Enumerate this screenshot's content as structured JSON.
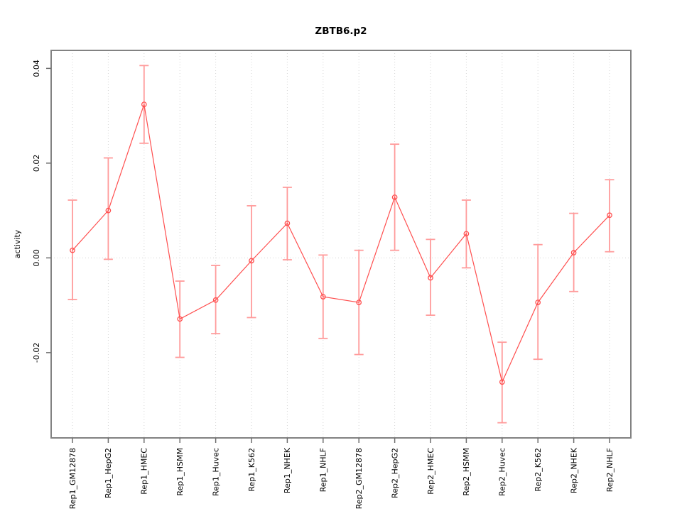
{
  "chart_data": {
    "type": "line",
    "title": "ZBTB6.p2",
    "ylabel": "activity",
    "xlabel": "",
    "legend": "none",
    "grid": "vertical dotted gridline at each category plus dotted horizontal line at y=0",
    "categories": [
      "Rep1_GM12878",
      "Rep1_HepG2",
      "Rep1_HMEC",
      "Rep1_HSMM",
      "Rep1_Huvec",
      "Rep1_K562",
      "Rep1_NHEK",
      "Rep1_NHLF",
      "Rep2_GM12878",
      "Rep2_HepG2",
      "Rep2_HMEC",
      "Rep2_HSMM",
      "Rep2_Huvec",
      "Rep2_K562",
      "Rep2_NHEK",
      "Rep2_NHLF"
    ],
    "series": [
      {
        "name": "activity",
        "values": [
          0.0016,
          0.01,
          0.0324,
          -0.0129,
          -0.0089,
          -0.0006,
          0.0073,
          -0.0082,
          -0.0094,
          0.0128,
          -0.0042,
          0.0051,
          -0.0262,
          -0.0094,
          0.0011,
          0.009
        ],
        "error_upper": [
          0.0122,
          0.0211,
          0.0406,
          -0.0049,
          -0.0016,
          0.011,
          0.0149,
          0.0006,
          0.0016,
          0.024,
          0.0039,
          0.0122,
          -0.0178,
          0.0028,
          0.0094,
          0.0165
        ],
        "error_lower": [
          -0.0088,
          -0.0003,
          0.0242,
          -0.021,
          -0.016,
          -0.0126,
          -0.0004,
          -0.017,
          -0.0204,
          0.0016,
          -0.0121,
          -0.0021,
          -0.0348,
          -0.0214,
          -0.0071,
          0.0013
        ]
      }
    ],
    "yticks": [
      -0.02,
      0,
      0.02,
      0.04
    ],
    "ytick_labels": [
      "-0.02",
      "0.00",
      "0.02",
      "0.04"
    ],
    "ylim": [
      -0.038,
      0.0438
    ],
    "zero_reference_line": 0,
    "colors": {
      "point_line": "#FF4F4F",
      "error_bar": "#FF9B9B",
      "grid": "#D5D5D5",
      "box": "#828282",
      "tick": "#6E6E6E",
      "text": "#000000",
      "background": "#FFFFFF"
    }
  }
}
